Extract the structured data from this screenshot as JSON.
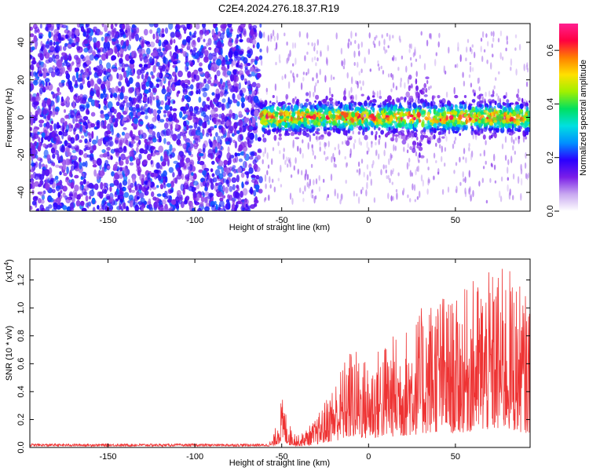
{
  "title": "C2E4.2024.276.18.37.R19",
  "chart_data": [
    {
      "type": "heatmap",
      "xlabel": "Height of straight line (km)",
      "ylabel": "Frequency (Hz)",
      "xlim": [
        -195,
        93
      ],
      "ylim": [
        -50,
        50
      ],
      "x_ticks": [
        "-150",
        "-100",
        "-50",
        "0",
        "50"
      ],
      "x_tick_values": [
        -150,
        -100,
        -50,
        0,
        50
      ],
      "y_ticks": [
        "-40",
        "-20",
        "0",
        "20",
        "40"
      ],
      "y_tick_values": [
        -40,
        -20,
        0,
        20,
        40
      ],
      "colorbar": {
        "label": "Normalized spectral amplitude",
        "range": [
          0,
          0.7
        ],
        "ticks": [
          "0.0",
          "0.2",
          "0.4",
          "0.6"
        ],
        "tick_values": [
          0,
          0.2,
          0.4,
          0.6
        ],
        "colormap": [
          "#ffffff",
          "#c8a8f0",
          "#7a1ee8",
          "#2a00ff",
          "#0090ff",
          "#00e0e0",
          "#00e060",
          "#a0f000",
          "#ffe000",
          "#ff8000",
          "#ff0040",
          "#ff2090"
        ]
      },
      "regions": [
        {
          "x_range": [
            -195,
            -62
          ],
          "freq_spread": 50,
          "amplitude": 0.1
        },
        {
          "x_range": [
            -62,
            93
          ],
          "freq_center": 0,
          "freq_spread": 12,
          "amplitude": 0.35
        }
      ]
    },
    {
      "type": "line",
      "xlabel": "Height of straight line (km)",
      "ylabel": "SNR (10 * v/v)",
      "multiplier": "(x10",
      "multiplier_exp": "4",
      "multiplier_close": ")",
      "xlim": [
        -195,
        93
      ],
      "ylim": [
        0,
        1.35
      ],
      "x_ticks": [
        "-150",
        "-100",
        "-50",
        "0",
        "50"
      ],
      "x_tick_values": [
        -150,
        -100,
        -50,
        0,
        50
      ],
      "y_ticks": [
        "0.0",
        "0.2",
        "0.4",
        "0.6",
        "0.8",
        "1.0",
        "1.2"
      ],
      "y_tick_values": [
        0,
        0.2,
        0.4,
        0.6,
        0.8,
        1.0,
        1.2
      ],
      "color": "#ee3333",
      "envelope": [
        {
          "x": -195,
          "y": 0.02
        },
        {
          "x": -60,
          "y": 0.02
        },
        {
          "x": -55,
          "y": 0.06
        },
        {
          "x": -50,
          "y": 0.35
        },
        {
          "x": -45,
          "y": 0.15
        },
        {
          "x": -40,
          "y": 0.08
        },
        {
          "x": -30,
          "y": 0.2
        },
        {
          "x": -20,
          "y": 0.45
        },
        {
          "x": -10,
          "y": 0.7
        },
        {
          "x": 0,
          "y": 0.6
        },
        {
          "x": 10,
          "y": 0.75
        },
        {
          "x": 20,
          "y": 0.8
        },
        {
          "x": 30,
          "y": 0.95
        },
        {
          "x": 40,
          "y": 1.1
        },
        {
          "x": 50,
          "y": 1.0
        },
        {
          "x": 60,
          "y": 1.15
        },
        {
          "x": 70,
          "y": 1.2
        },
        {
          "x": 80,
          "y": 1.25
        },
        {
          "x": 93,
          "y": 1.0
        }
      ]
    }
  ]
}
